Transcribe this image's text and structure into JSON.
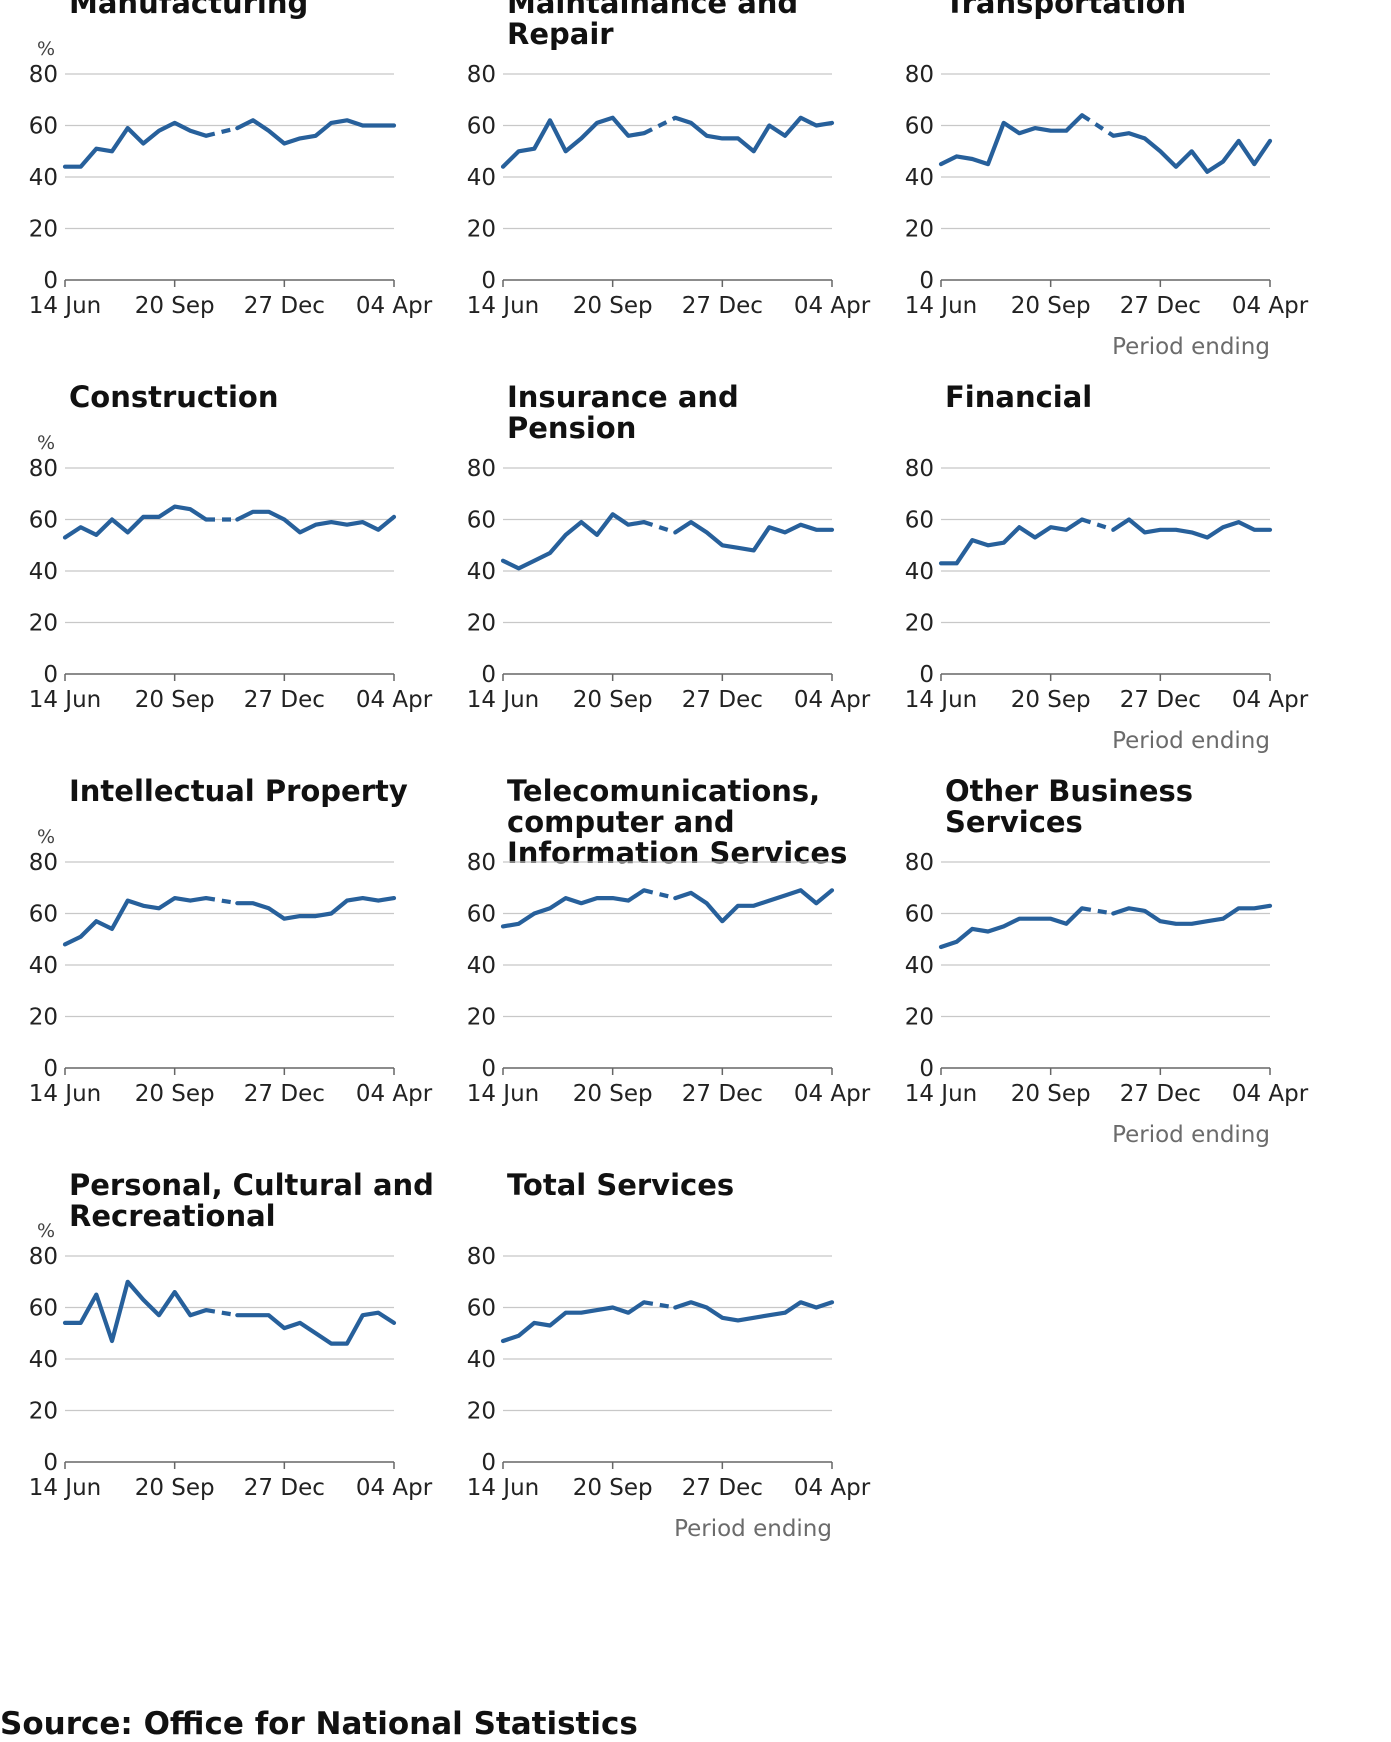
{
  "chart_data": [
    {
      "type": "line",
      "title": "Manufacturing",
      "ylabel": "%",
      "xlabel": "Period ending",
      "ylim": [
        0,
        80
      ],
      "yticks": [
        0,
        20,
        40,
        60,
        80
      ],
      "xtick_labels": [
        "14 Jun",
        "20 Sep",
        "27 Dec",
        "04 Apr"
      ],
      "show_unit": true,
      "show_xlabel": false,
      "gap": [
        9,
        11
      ],
      "values": [
        44,
        44,
        51,
        50,
        59,
        53,
        58,
        61,
        58,
        56,
        null,
        59,
        62,
        58,
        53,
        55,
        56,
        61,
        62,
        60,
        60,
        60
      ]
    },
    {
      "type": "line",
      "title": "Maintainance and Repair",
      "ylabel": "%",
      "xlabel": "Period ending",
      "ylim": [
        0,
        80
      ],
      "yticks": [
        0,
        20,
        40,
        60,
        80
      ],
      "xtick_labels": [
        "14 Jun",
        "20 Sep",
        "27 Dec",
        "04 Apr"
      ],
      "show_unit": false,
      "show_xlabel": false,
      "gap": [
        9,
        11
      ],
      "values": [
        44,
        50,
        51,
        62,
        50,
        55,
        61,
        63,
        56,
        57,
        null,
        63,
        61,
        56,
        55,
        55,
        50,
        60,
        56,
        63,
        60,
        61
      ]
    },
    {
      "type": "line",
      "title": "Transportation",
      "ylabel": "%",
      "xlabel": "Period ending",
      "ylim": [
        0,
        80
      ],
      "yticks": [
        0,
        20,
        40,
        60,
        80
      ],
      "xtick_labels": [
        "14 Jun",
        "20 Sep",
        "27 Dec",
        "04 Apr"
      ],
      "show_unit": false,
      "show_xlabel": true,
      "gap": [
        9,
        11
      ],
      "values": [
        45,
        48,
        47,
        45,
        61,
        57,
        59,
        58,
        58,
        64,
        null,
        56,
        57,
        55,
        50,
        44,
        50,
        42,
        46,
        54,
        45,
        54
      ]
    },
    {
      "type": "line",
      "title": "Construction",
      "ylabel": "%",
      "xlabel": "Period ending",
      "ylim": [
        0,
        80
      ],
      "yticks": [
        0,
        20,
        40,
        60,
        80
      ],
      "xtick_labels": [
        "14 Jun",
        "20 Sep",
        "27 Dec",
        "04 Apr"
      ],
      "show_unit": true,
      "show_xlabel": false,
      "gap": [
        9,
        11
      ],
      "values": [
        53,
        57,
        54,
        60,
        55,
        61,
        61,
        65,
        64,
        60,
        null,
        60,
        63,
        63,
        60,
        55,
        58,
        59,
        58,
        59,
        56,
        61
      ]
    },
    {
      "type": "line",
      "title": "Insurance and Pension",
      "ylabel": "%",
      "xlabel": "Period ending",
      "ylim": [
        0,
        80
      ],
      "yticks": [
        0,
        20,
        40,
        60,
        80
      ],
      "xtick_labels": [
        "14 Jun",
        "20 Sep",
        "27 Dec",
        "04 Apr"
      ],
      "show_unit": false,
      "show_xlabel": false,
      "gap": [
        9,
        11
      ],
      "values": [
        44,
        41,
        44,
        47,
        54,
        59,
        54,
        62,
        58,
        59,
        null,
        55,
        59,
        55,
        50,
        49,
        48,
        57,
        55,
        58,
        56,
        56
      ]
    },
    {
      "type": "line",
      "title": "Financial",
      "ylabel": "%",
      "xlabel": "Period ending",
      "ylim": [
        0,
        80
      ],
      "yticks": [
        0,
        20,
        40,
        60,
        80
      ],
      "xtick_labels": [
        "14 Jun",
        "20 Sep",
        "27 Dec",
        "04 Apr"
      ],
      "show_unit": false,
      "show_xlabel": true,
      "gap": [
        9,
        11
      ],
      "values": [
        43,
        43,
        52,
        50,
        51,
        57,
        53,
        57,
        56,
        60,
        null,
        56,
        60,
        55,
        56,
        56,
        55,
        53,
        57,
        59,
        56,
        56
      ]
    },
    {
      "type": "line",
      "title": "Intellectual Property",
      "ylabel": "%",
      "xlabel": "Period ending",
      "ylim": [
        0,
        80
      ],
      "yticks": [
        0,
        20,
        40,
        60,
        80
      ],
      "xtick_labels": [
        "14 Jun",
        "20 Sep",
        "27 Dec",
        "04 Apr"
      ],
      "show_unit": true,
      "show_xlabel": false,
      "gap": [
        9,
        11
      ],
      "values": [
        48,
        51,
        57,
        54,
        65,
        63,
        62,
        66,
        65,
        66,
        null,
        64,
        64,
        62,
        58,
        59,
        59,
        60,
        65,
        66,
        65,
        66
      ]
    },
    {
      "type": "line",
      "title": "Telecomunications, computer and Information Services",
      "ylabel": "%",
      "xlabel": "Period ending",
      "ylim": [
        0,
        80
      ],
      "yticks": [
        0,
        20,
        40,
        60,
        80
      ],
      "xtick_labels": [
        "14 Jun",
        "20 Sep",
        "27 Dec",
        "04 Apr"
      ],
      "show_unit": false,
      "show_xlabel": false,
      "gap": [
        9,
        11
      ],
      "values": [
        55,
        56,
        60,
        62,
        66,
        64,
        66,
        66,
        65,
        69,
        null,
        66,
        68,
        64,
        57,
        63,
        63,
        65,
        67,
        69,
        64,
        69
      ]
    },
    {
      "type": "line",
      "title": "Other Business Services",
      "ylabel": "%",
      "xlabel": "Period ending",
      "ylim": [
        0,
        80
      ],
      "yticks": [
        0,
        20,
        40,
        60,
        80
      ],
      "xtick_labels": [
        "14 Jun",
        "20 Sep",
        "27 Dec",
        "04 Apr"
      ],
      "show_unit": false,
      "show_xlabel": true,
      "gap": [
        9,
        11
      ],
      "values": [
        47,
        49,
        54,
        53,
        55,
        58,
        58,
        58,
        56,
        62,
        null,
        60,
        62,
        61,
        57,
        56,
        56,
        57,
        58,
        62,
        62,
        63
      ]
    },
    {
      "type": "line",
      "title": "Personal, Cultural and Recreational",
      "ylabel": "%",
      "xlabel": "Period ending",
      "ylim": [
        0,
        80
      ],
      "yticks": [
        0,
        20,
        40,
        60,
        80
      ],
      "xtick_labels": [
        "14 Jun",
        "20 Sep",
        "27 Dec",
        "04 Apr"
      ],
      "show_unit": true,
      "show_xlabel": false,
      "gap": [
        9,
        11
      ],
      "values": [
        54,
        54,
        65,
        47,
        70,
        63,
        57,
        66,
        57,
        59,
        null,
        57,
        57,
        57,
        52,
        54,
        50,
        46,
        46,
        57,
        58,
        54
      ]
    },
    {
      "type": "line",
      "title": "Total Services",
      "ylabel": "%",
      "xlabel": "Period ending",
      "ylim": [
        0,
        80
      ],
      "yticks": [
        0,
        20,
        40,
        60,
        80
      ],
      "xtick_labels": [
        "14 Jun",
        "20 Sep",
        "27 Dec",
        "04 Apr"
      ],
      "show_unit": false,
      "show_xlabel": true,
      "gap": [
        9,
        11
      ],
      "values": [
        47,
        49,
        54,
        53,
        58,
        58,
        59,
        60,
        58,
        62,
        null,
        60,
        62,
        60,
        56,
        55,
        56,
        57,
        58,
        62,
        60,
        62
      ]
    }
  ],
  "source": "Source: Office for National Statistics",
  "colors": {
    "line": "#27609b",
    "grid": "#c8c8c8",
    "axis": "#666666"
  }
}
